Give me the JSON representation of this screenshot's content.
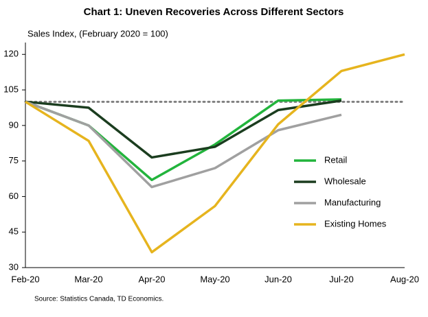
{
  "chart_data": {
    "type": "line",
    "title": "Chart 1: Uneven Recoveries Across Different Sectors",
    "y_label": "Sales Index, (February 2020 = 100)",
    "source": "Source:  Statistics Canada,  TD  Economics.",
    "categories": [
      "Feb-20",
      "Mar-20",
      "Apr-20",
      "May-20",
      "Jun-20",
      "Jul-20",
      "Aug-20"
    ],
    "series": [
      {
        "name": "Retail",
        "color": "#22b43c",
        "values": [
          100,
          90,
          67,
          82,
          100.5,
          101,
          null
        ]
      },
      {
        "name": "Wholesale",
        "color": "#1b3d1f",
        "values": [
          100,
          97.5,
          76.5,
          81,
          96.5,
          100.5,
          null
        ]
      },
      {
        "name": "Manufacturing",
        "color": "#a0a0a0",
        "values": [
          100,
          90,
          64,
          72,
          88,
          94.5,
          null
        ]
      },
      {
        "name": "Existing Homes",
        "color": "#e6b41e",
        "values": [
          100,
          83.5,
          36.5,
          56,
          90.5,
          113,
          120
        ]
      }
    ],
    "reference_line": 100,
    "ylim": [
      30,
      125
    ],
    "yticks": [
      30,
      45,
      60,
      75,
      90,
      105,
      120
    ],
    "legend": "right"
  }
}
